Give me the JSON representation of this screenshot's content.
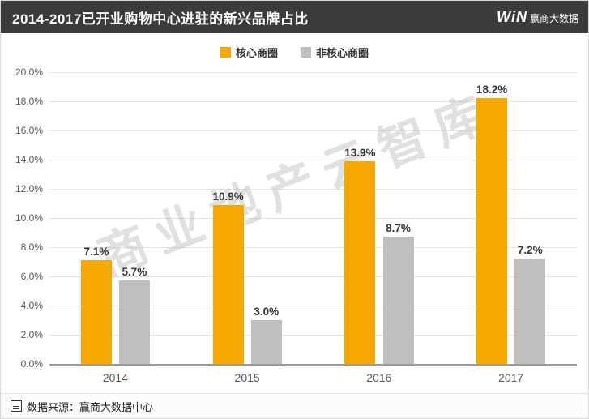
{
  "header": {
    "title": "2014-2017已开业购物中心进驻的新兴品牌占比",
    "logo_win": "WiN",
    "logo_text": "赢商大数据"
  },
  "watermark": "商业地产云智库",
  "footer": {
    "source": "数据来源：赢商大数据中心",
    "source_icon": "document-icon"
  },
  "colors": {
    "header_bg": "#3d3a3a",
    "core_series": "#f5a800",
    "noncore_series": "#bfbfbf",
    "grid": "#e2e2e2",
    "axis": "#9a9a9a",
    "text_dark": "#333333",
    "text_axis": "#595959",
    "watermark": "#c2c2c2"
  },
  "chart_data": {
    "type": "bar",
    "title": "2014-2017已开业购物中心进驻的新兴品牌占比",
    "categories": [
      "2014",
      "2015",
      "2016",
      "2017"
    ],
    "series": [
      {
        "name": "核心商圈",
        "color": "#f5a800",
        "values": [
          7.1,
          10.9,
          13.9,
          18.2
        ]
      },
      {
        "name": "非核心商圈",
        "color": "#bfbfbf",
        "values": [
          5.7,
          3.0,
          8.7,
          7.2
        ]
      }
    ],
    "xlabel": "",
    "ylabel": "",
    "ylim": [
      0,
      20
    ],
    "yticks": [
      "20.0%",
      "18.0%",
      "16.0%",
      "14.0%",
      "12.0%",
      "10.0%",
      "8.0%",
      "6.0%",
      "4.0%",
      "2.0%",
      "0.0%"
    ],
    "value_suffix": "%",
    "grid": true,
    "legend_position": "top"
  }
}
